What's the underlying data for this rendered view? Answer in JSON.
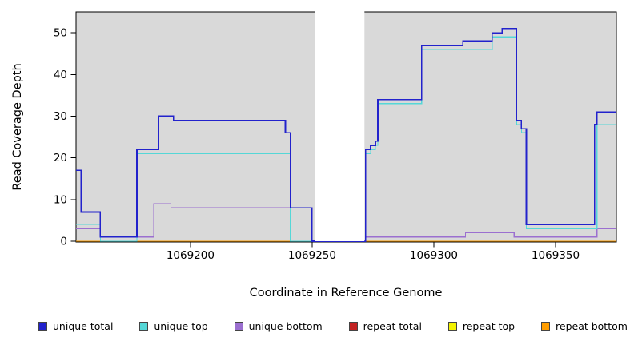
{
  "chart_data": {
    "type": "line",
    "line_style": "step",
    "title": "",
    "xlabel": "Coordinate in Reference Genome",
    "ylabel": "Read Coverage Depth",
    "xlim": [
      1069153,
      1069375
    ],
    "ylim": [
      0,
      55
    ],
    "x_tick_values": [
      1069200,
      1069250,
      1069300,
      1069350
    ],
    "x_tick_labels": [
      "1069200",
      "1069250",
      "1069300",
      "1069350"
    ],
    "y_tick_values": [
      0,
      10,
      20,
      30,
      40,
      50
    ],
    "y_tick_labels": [
      "0",
      "10",
      "20",
      "30",
      "40",
      "50"
    ],
    "plot_background": "#d9d9d9",
    "masked_region": [
      1069251,
      1069271.5
    ],
    "legend_position": "bottom",
    "grid": false,
    "draw_order": [
      3,
      4,
      5,
      2,
      1,
      0
    ],
    "series": [
      {
        "name": "unique total",
        "color": "#2222cc",
        "width": 1.6,
        "points": [
          [
            1069153,
            17
          ],
          [
            1069155,
            7
          ],
          [
            1069163,
            1
          ],
          [
            1069178,
            22
          ],
          [
            1069187,
            30
          ],
          [
            1069193,
            29
          ],
          [
            1069239,
            26
          ],
          [
            1069241,
            8
          ],
          [
            1069250,
            0
          ],
          [
            1069272,
            22
          ],
          [
            1069274,
            23
          ],
          [
            1069276,
            24
          ],
          [
            1069277,
            34
          ],
          [
            1069295,
            47
          ],
          [
            1069312,
            48
          ],
          [
            1069324,
            50
          ],
          [
            1069328,
            51
          ],
          [
            1069334,
            29
          ],
          [
            1069336,
            27
          ],
          [
            1069338,
            4
          ],
          [
            1069366,
            28
          ],
          [
            1069367,
            31
          ],
          [
            1069375,
            31
          ]
        ]
      },
      {
        "name": "unique top",
        "color": "#55d7d7",
        "width": 1.2,
        "points": [
          [
            1069153,
            4
          ],
          [
            1069163,
            0
          ],
          [
            1069178,
            21
          ],
          [
            1069241,
            0
          ],
          [
            1069272,
            21
          ],
          [
            1069274,
            22
          ],
          [
            1069276,
            23
          ],
          [
            1069277,
            33
          ],
          [
            1069295,
            46
          ],
          [
            1069324,
            49
          ],
          [
            1069334,
            28
          ],
          [
            1069336,
            26
          ],
          [
            1069338,
            3
          ],
          [
            1069367,
            28
          ],
          [
            1069375,
            28
          ]
        ]
      },
      {
        "name": "unique bottom",
        "color": "#9b6fd0",
        "width": 1.2,
        "points": [
          [
            1069153,
            3
          ],
          [
            1069163,
            1
          ],
          [
            1069185,
            9
          ],
          [
            1069192,
            8
          ],
          [
            1069250,
            0
          ],
          [
            1069272,
            1
          ],
          [
            1069313,
            2
          ],
          [
            1069333,
            1
          ],
          [
            1069367,
            3
          ],
          [
            1069375,
            3
          ]
        ]
      },
      {
        "name": "repeat total",
        "color": "#c22222",
        "width": 1.2,
        "points": [
          [
            1069153,
            0
          ],
          [
            1069375,
            0
          ]
        ]
      },
      {
        "name": "repeat top",
        "color": "#f2f200",
        "width": 1.2,
        "points": [
          [
            1069153,
            0
          ],
          [
            1069375,
            0
          ]
        ]
      },
      {
        "name": "repeat bottom",
        "color": "#ff9d00",
        "width": 1.2,
        "points": [
          [
            1069153,
            0
          ],
          [
            1069375,
            0
          ]
        ]
      }
    ]
  }
}
